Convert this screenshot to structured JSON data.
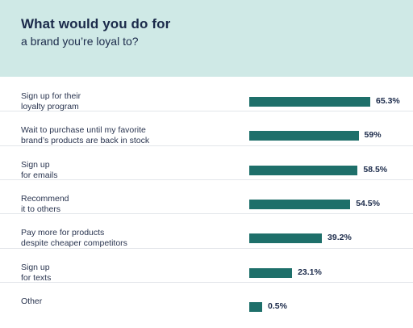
{
  "header": {
    "title": "What would you do for",
    "subtitle": "a brand you’re loyal to?"
  },
  "colors": {
    "header_bg": "#cfe9e6",
    "bar": "#1e6f6a",
    "text": "#1b2a4a"
  },
  "chart_data": {
    "type": "bar",
    "orientation": "horizontal",
    "title": "What would you do for a brand you’re loyal to?",
    "categories": [
      "Sign up for their\nloyalty program",
      "Wait to purchase until my favorite\nbrand’s products are back in stock",
      "Sign up\nfor emails",
      "Recommend\nit to others",
      "Pay more for products\ndespite cheaper competitors",
      "Sign up\nfor texts",
      "Other"
    ],
    "values": [
      65.3,
      59,
      58.5,
      54.5,
      39.2,
      23.1,
      0.5
    ],
    "value_labels": [
      "65.3%",
      "59%",
      "58.5%",
      "54.5%",
      "39.2%",
      "23.1%",
      "0.5%"
    ],
    "unit": "%",
    "xlim": [
      0,
      65.3
    ]
  }
}
